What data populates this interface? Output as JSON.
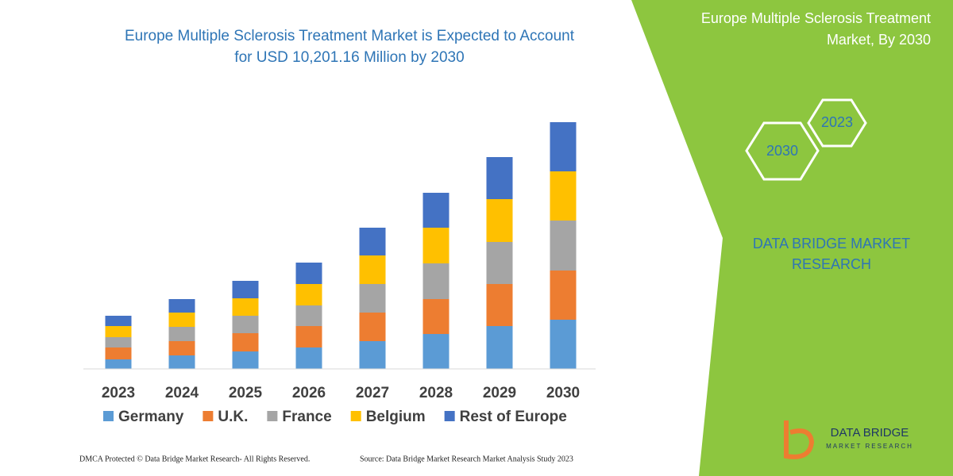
{
  "chart_data": {
    "type": "stacked_bar",
    "title": [
      "Europe Multiple Sclerosis Treatment Market is Expected to Account",
      "for USD 10,201.16 Million by 2030"
    ],
    "categories": [
      "2023",
      "2024",
      "2025",
      "2026",
      "2027",
      "2028",
      "2029",
      "2030"
    ],
    "series": [
      {
        "name": "Germany",
        "color": "#5b9bd5",
        "values": [
          12,
          17,
          22,
          27,
          35,
          44,
          54,
          62
        ]
      },
      {
        "name": "U.K.",
        "color": "#ed7d31",
        "values": [
          15,
          18,
          23,
          27,
          36,
          44,
          53,
          62
        ]
      },
      {
        "name": "France",
        "color": "#a5a5a5",
        "values": [
          13,
          18,
          22,
          26,
          36,
          45,
          53,
          63
        ]
      },
      {
        "name": "Belgium",
        "color": "#ffc000",
        "values": [
          14,
          18,
          22,
          27,
          36,
          45,
          54,
          62
        ]
      },
      {
        "name": "Rest of Europe",
        "color": "#4472c4",
        "values": [
          13,
          17,
          22,
          27,
          35,
          44,
          53,
          62
        ]
      }
    ]
  },
  "panel": {
    "title": [
      "Europe Multiple Sclerosis Treatment",
      "Market, By 2030"
    ],
    "hexagons": [
      "2030",
      "2023"
    ],
    "brand": [
      "DATA BRIDGE MARKET",
      "RESEARCH"
    ]
  },
  "logo": {
    "name": "DATA BRIDGE",
    "tagline": "MARKET RESEARCH"
  },
  "footer": {
    "left": "DMCA Protected © Data Bridge Market Research- All Rights Reserved.",
    "right": "Source: Data Bridge Market Research Market Analysis Study 2023"
  }
}
